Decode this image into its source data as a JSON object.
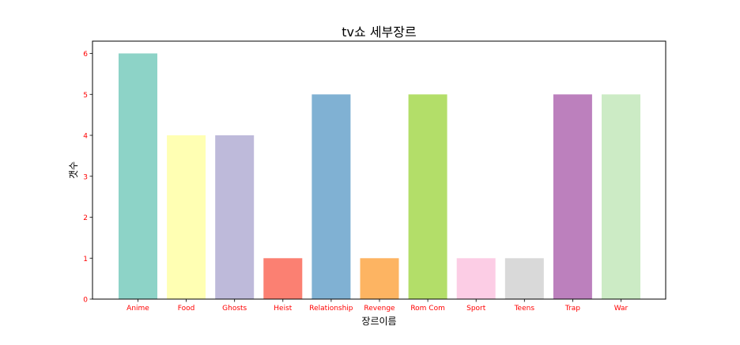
{
  "chart_data": {
    "type": "bar",
    "title": "tv쇼 세부장르",
    "xlabel": "장르이름",
    "ylabel": "갯수",
    "categories": [
      "Anime",
      "Food",
      "Ghosts",
      "Heist",
      "Relationship",
      "Revenge",
      "Rom Com",
      "Sport",
      "Teens",
      "Trap",
      "War"
    ],
    "values": [
      6,
      4,
      4,
      1,
      5,
      1,
      5,
      1,
      1,
      5,
      5
    ],
    "colors": [
      "#8dd3c7",
      "#ffffb3",
      "#bebada",
      "#fb8072",
      "#80b1d3",
      "#fdb462",
      "#b3de69",
      "#fccde5",
      "#d9d9d9",
      "#bc80bd",
      "#ccebc5"
    ],
    "yticks": [
      0,
      1,
      2,
      3,
      4,
      5,
      6
    ],
    "ylim": [
      0,
      6.3
    ],
    "grid": false,
    "tick_label_color": "#ff0000"
  }
}
